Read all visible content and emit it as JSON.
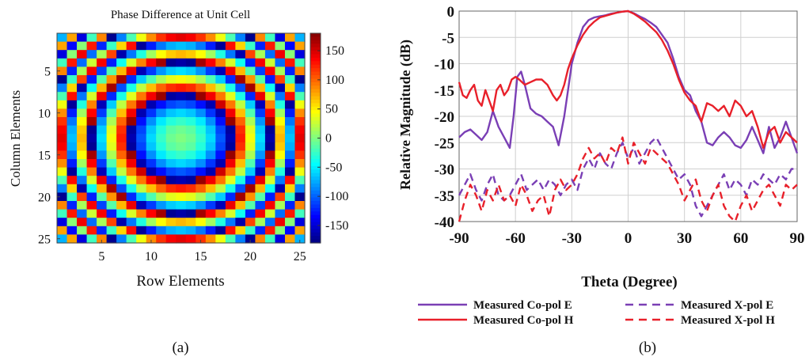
{
  "chart_data": [
    {
      "type": "heatmap",
      "title": "Phase Difference at Unit Cell",
      "xlabel": "Row Elements",
      "ylabel": "Column Elements",
      "rows": 25,
      "cols": 25,
      "x_ticks": [
        5,
        10,
        15,
        20,
        25
      ],
      "y_ticks": [
        5,
        10,
        15,
        20,
        25
      ],
      "colorbar_ticks": [
        150,
        100,
        50,
        0,
        -50,
        -100,
        -150
      ],
      "color_range": [
        -180,
        180
      ],
      "colormap": "jet",
      "center": [
        13,
        13
      ],
      "phase_at_center": 0,
      "phase_step_per_element_squared": 6.5,
      "caption": "(a)"
    },
    {
      "type": "line",
      "xlabel": "Theta (Degree)",
      "ylabel": "Relative  Magnitude (dB)",
      "xlim": [
        -90,
        90
      ],
      "ylim": [
        -40,
        0
      ],
      "x_ticks": [
        -90,
        -60,
        -30,
        0,
        30,
        60,
        90
      ],
      "y_ticks": [
        0,
        -5,
        -10,
        -15,
        -20,
        -25,
        -30,
        -35,
        -40
      ],
      "grid": true,
      "legend_position": "bottom",
      "caption": "(b)",
      "series": [
        {
          "name": "Measured Co-pol E",
          "color": "#7a3fb5",
          "dash": "solid",
          "points": [
            [
              -90,
              -24
            ],
            [
              -87,
              -23
            ],
            [
              -84,
              -22.5
            ],
            [
              -81,
              -23.5
            ],
            [
              -78,
              -24.5
            ],
            [
              -75,
              -23
            ],
            [
              -72,
              -19
            ],
            [
              -69,
              -22
            ],
            [
              -66,
              -24
            ],
            [
              -63,
              -26
            ],
            [
              -61,
              -20
            ],
            [
              -59,
              -12.5
            ],
            [
              -57,
              -11.5
            ],
            [
              -55,
              -14
            ],
            [
              -52,
              -18.5
            ],
            [
              -49,
              -19.5
            ],
            [
              -46,
              -20
            ],
            [
              -43,
              -21
            ],
            [
              -40,
              -22
            ],
            [
              -37,
              -25.5
            ],
            [
              -34,
              -20
            ],
            [
              -32,
              -15
            ],
            [
              -30,
              -10
            ],
            [
              -27,
              -6
            ],
            [
              -24,
              -3
            ],
            [
              -21,
              -1.7
            ],
            [
              -18,
              -1.2
            ],
            [
              -15,
              -1
            ],
            [
              -12,
              -0.8
            ],
            [
              -9,
              -0.5
            ],
            [
              -6,
              -0.3
            ],
            [
              -3,
              -0.1
            ],
            [
              0,
              0
            ],
            [
              3,
              -0.4
            ],
            [
              6,
              -1
            ],
            [
              9,
              -1.5
            ],
            [
              12,
              -2.2
            ],
            [
              15,
              -3
            ],
            [
              18,
              -4.5
            ],
            [
              21,
              -6
            ],
            [
              24,
              -9
            ],
            [
              27,
              -12.5
            ],
            [
              30,
              -15
            ],
            [
              33,
              -16
            ],
            [
              36,
              -19
            ],
            [
              39,
              -21
            ],
            [
              42,
              -25
            ],
            [
              45,
              -25.5
            ],
            [
              48,
              -24
            ],
            [
              51,
              -23
            ],
            [
              54,
              -24
            ],
            [
              57,
              -25.5
            ],
            [
              60,
              -26
            ],
            [
              63,
              -24.5
            ],
            [
              66,
              -22
            ],
            [
              69,
              -24.5
            ],
            [
              72,
              -27
            ],
            [
              75,
              -22
            ],
            [
              78,
              -26
            ],
            [
              81,
              -24
            ],
            [
              84,
              -21
            ],
            [
              87,
              -24
            ],
            [
              90,
              -27
            ]
          ]
        },
        {
          "name": "Measured Co-pol H",
          "color": "#e8202a",
          "dash": "solid",
          "points": [
            [
              -90,
              -13.5
            ],
            [
              -88,
              -16
            ],
            [
              -86,
              -16.5
            ],
            [
              -84,
              -15
            ],
            [
              -82,
              -14
            ],
            [
              -80,
              -17
            ],
            [
              -78,
              -18
            ],
            [
              -76,
              -15
            ],
            [
              -74,
              -17
            ],
            [
              -72,
              -19
            ],
            [
              -70,
              -15
            ],
            [
              -68,
              -14
            ],
            [
              -66,
              -16
            ],
            [
              -64,
              -15
            ],
            [
              -62,
              -13
            ],
            [
              -60,
              -12.5
            ],
            [
              -58,
              -13
            ],
            [
              -55,
              -14
            ],
            [
              -52,
              -13.5
            ],
            [
              -49,
              -13
            ],
            [
              -46,
              -13
            ],
            [
              -43,
              -14
            ],
            [
              -40,
              -16
            ],
            [
              -38,
              -17
            ],
            [
              -36,
              -16
            ],
            [
              -34,
              -14
            ],
            [
              -32,
              -11
            ],
            [
              -30,
              -9
            ],
            [
              -27,
              -6.5
            ],
            [
              -24,
              -4.5
            ],
            [
              -21,
              -3
            ],
            [
              -18,
              -2
            ],
            [
              -15,
              -1.2
            ],
            [
              -12,
              -0.9
            ],
            [
              -9,
              -0.6
            ],
            [
              -6,
              -0.3
            ],
            [
              -3,
              -0.1
            ],
            [
              0,
              0
            ],
            [
              3,
              -0.5
            ],
            [
              6,
              -1.2
            ],
            [
              9,
              -2
            ],
            [
              12,
              -3
            ],
            [
              15,
              -4
            ],
            [
              18,
              -5.5
            ],
            [
              21,
              -7.5
            ],
            [
              24,
              -10
            ],
            [
              27,
              -13
            ],
            [
              30,
              -15.5
            ],
            [
              33,
              -17
            ],
            [
              36,
              -18
            ],
            [
              39,
              -21
            ],
            [
              42,
              -17.5
            ],
            [
              45,
              -18
            ],
            [
              48,
              -19
            ],
            [
              51,
              -18
            ],
            [
              54,
              -20
            ],
            [
              57,
              -17
            ],
            [
              60,
              -18
            ],
            [
              63,
              -20
            ],
            [
              66,
              -19
            ],
            [
              69,
              -22
            ],
            [
              72,
              -26
            ],
            [
              75,
              -23
            ],
            [
              78,
              -22
            ],
            [
              81,
              -25
            ],
            [
              84,
              -23
            ],
            [
              87,
              -24
            ],
            [
              90,
              -25
            ]
          ]
        },
        {
          "name": "Measured X-pol E",
          "color": "#7a3fb5",
          "dash": "dashed",
          "points": [
            [
              -90,
              -35
            ],
            [
              -87,
              -33
            ],
            [
              -84,
              -31
            ],
            [
              -81,
              -34
            ],
            [
              -78,
              -36
            ],
            [
              -75,
              -33
            ],
            [
              -72,
              -31
            ],
            [
              -69,
              -35
            ],
            [
              -66,
              -36
            ],
            [
              -63,
              -35
            ],
            [
              -60,
              -33
            ],
            [
              -57,
              -31
            ],
            [
              -54,
              -34
            ],
            [
              -51,
              -33
            ],
            [
              -48,
              -32
            ],
            [
              -45,
              -34
            ],
            [
              -42,
              -32
            ],
            [
              -39,
              -33
            ],
            [
              -36,
              -35
            ],
            [
              -33,
              -33
            ],
            [
              -30,
              -32
            ],
            [
              -27,
              -34
            ],
            [
              -24,
              -30
            ],
            [
              -21,
              -28
            ],
            [
              -18,
              -30
            ],
            [
              -15,
              -27
            ],
            [
              -12,
              -29
            ],
            [
              -9,
              -30
            ],
            [
              -6,
              -27
            ],
            [
              -3,
              -25
            ],
            [
              0,
              -28
            ],
            [
              3,
              -26
            ],
            [
              6,
              -29
            ],
            [
              9,
              -27
            ],
            [
              12,
              -25
            ],
            [
              15,
              -24
            ],
            [
              18,
              -26
            ],
            [
              21,
              -28
            ],
            [
              24,
              -30
            ],
            [
              27,
              -32
            ],
            [
              30,
              -31
            ],
            [
              33,
              -33
            ],
            [
              36,
              -37
            ],
            [
              39,
              -39
            ],
            [
              42,
              -37
            ],
            [
              45,
              -35
            ],
            [
              48,
              -33
            ],
            [
              51,
              -31
            ],
            [
              54,
              -34
            ],
            [
              57,
              -32
            ],
            [
              60,
              -33
            ],
            [
              63,
              -35
            ],
            [
              66,
              -32
            ],
            [
              69,
              -33
            ],
            [
              72,
              -31
            ],
            [
              75,
              -32
            ],
            [
              78,
              -33
            ],
            [
              81,
              -31
            ],
            [
              84,
              -32
            ],
            [
              87,
              -30
            ],
            [
              90,
              -30
            ]
          ]
        },
        {
          "name": "Measured X-pol H",
          "color": "#e8202a",
          "dash": "dashed",
          "points": [
            [
              -90,
              -40
            ],
            [
              -87,
              -36
            ],
            [
              -84,
              -33
            ],
            [
              -81,
              -35
            ],
            [
              -78,
              -38
            ],
            [
              -75,
              -34
            ],
            [
              -72,
              -36
            ],
            [
              -69,
              -33
            ],
            [
              -66,
              -36
            ],
            [
              -63,
              -35
            ],
            [
              -60,
              -37
            ],
            [
              -57,
              -33
            ],
            [
              -54,
              -35
            ],
            [
              -51,
              -38
            ],
            [
              -48,
              -36
            ],
            [
              -45,
              -35
            ],
            [
              -42,
              -39
            ],
            [
              -39,
              -34
            ],
            [
              -36,
              -32
            ],
            [
              -33,
              -34
            ],
            [
              -30,
              -33
            ],
            [
              -27,
              -31
            ],
            [
              -24,
              -28
            ],
            [
              -21,
              -26
            ],
            [
              -18,
              -28
            ],
            [
              -15,
              -27
            ],
            [
              -12,
              -29
            ],
            [
              -9,
              -26
            ],
            [
              -6,
              -27
            ],
            [
              -3,
              -24
            ],
            [
              0,
              -29
            ],
            [
              3,
              -25
            ],
            [
              6,
              -27
            ],
            [
              9,
              -29
            ],
            [
              12,
              -26
            ],
            [
              15,
              -27
            ],
            [
              18,
              -28
            ],
            [
              21,
              -29
            ],
            [
              24,
              -31
            ],
            [
              27,
              -33
            ],
            [
              30,
              -36
            ],
            [
              33,
              -34
            ],
            [
              36,
              -32
            ],
            [
              39,
              -36
            ],
            [
              42,
              -38
            ],
            [
              45,
              -35
            ],
            [
              48,
              -33
            ],
            [
              51,
              -37
            ],
            [
              54,
              -39
            ],
            [
              57,
              -40
            ],
            [
              60,
              -37
            ],
            [
              63,
              -35
            ],
            [
              66,
              -38
            ],
            [
              69,
              -36
            ],
            [
              72,
              -34
            ],
            [
              75,
              -33
            ],
            [
              78,
              -35
            ],
            [
              81,
              -37
            ],
            [
              84,
              -33
            ],
            [
              87,
              -34
            ],
            [
              90,
              -33
            ]
          ]
        }
      ]
    }
  ]
}
